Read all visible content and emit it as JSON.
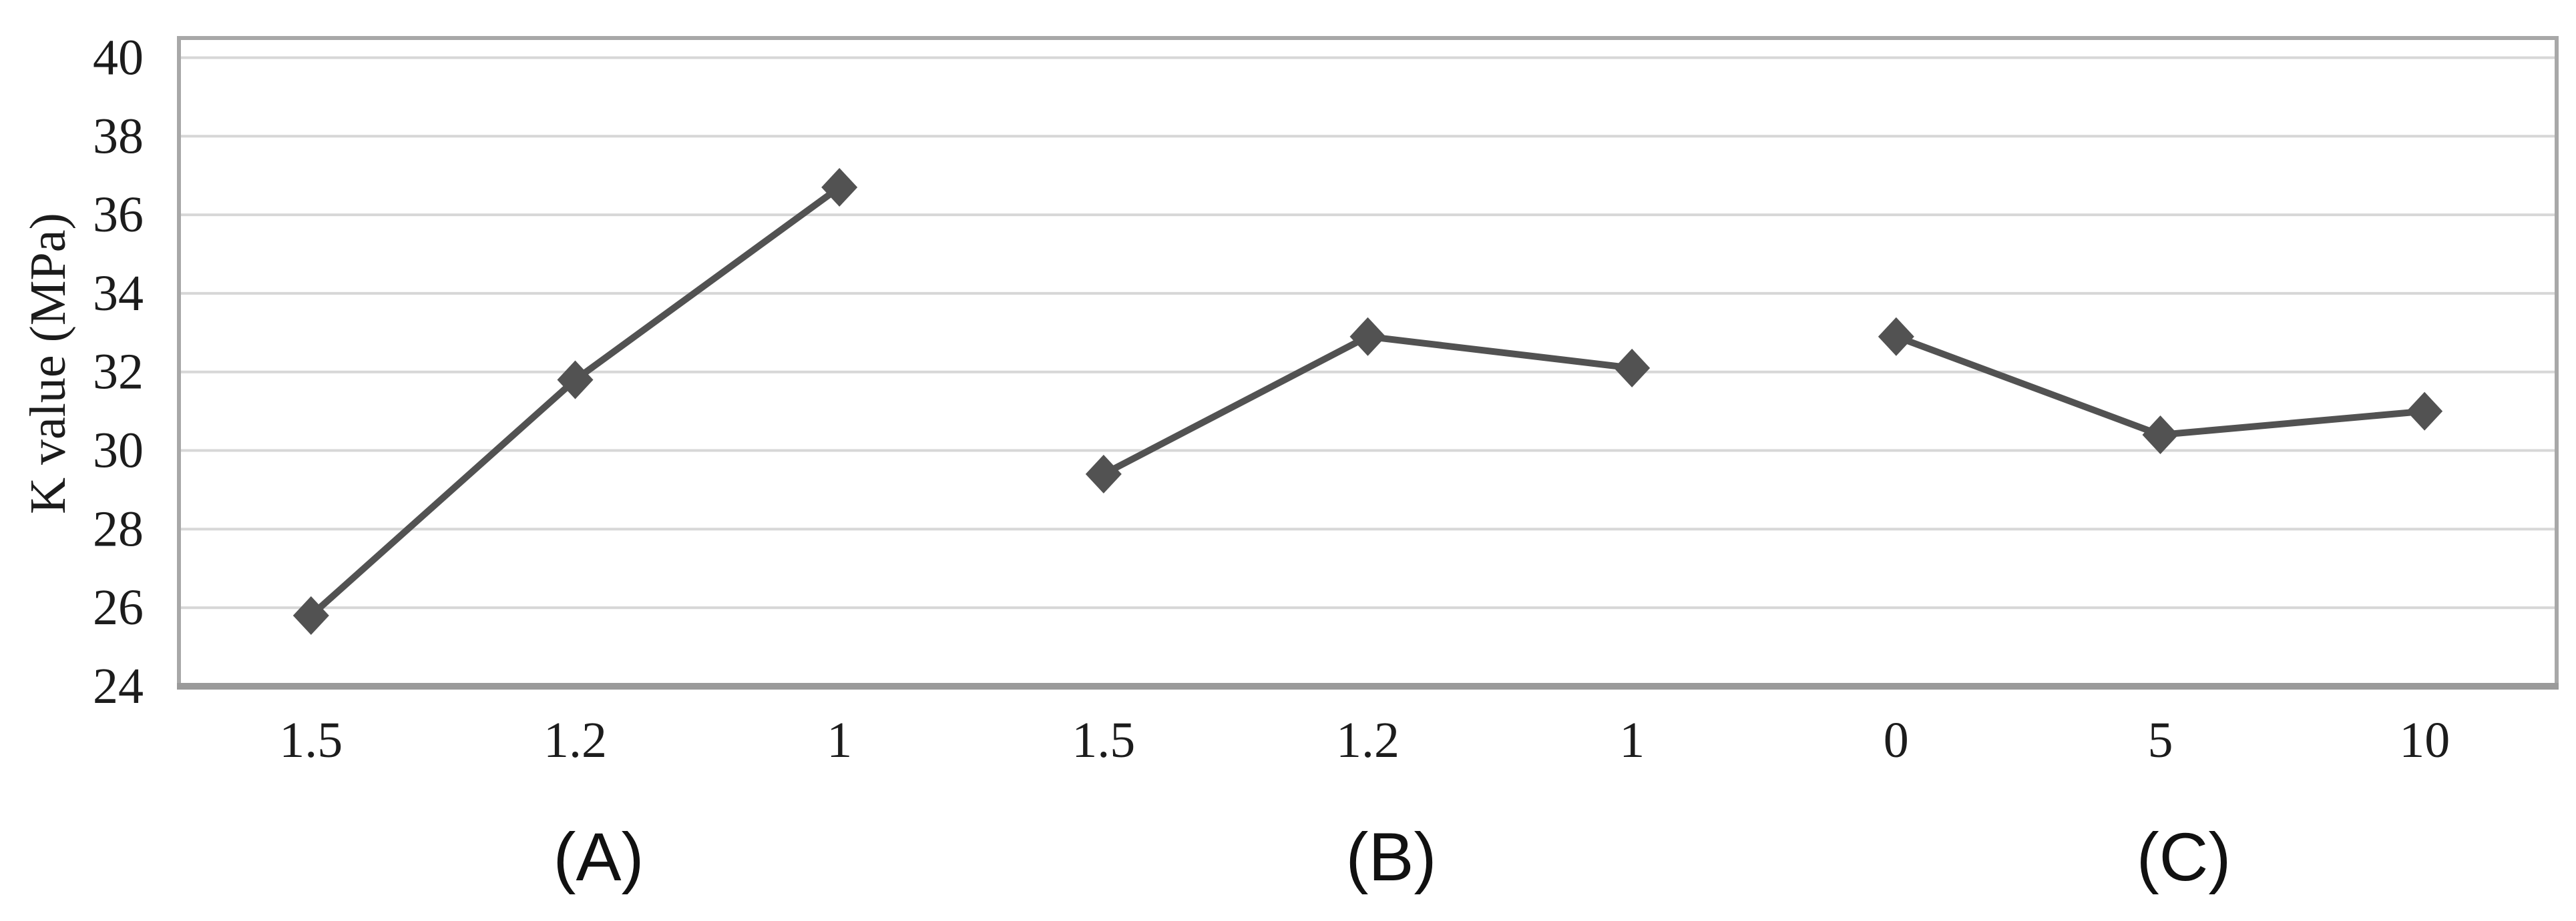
{
  "figure": {
    "background": "#ffffff"
  },
  "chart_data": {
    "type": "line",
    "title": "",
    "xlabel": "",
    "ylabel": "K value (MPa)",
    "ylim": [
      24,
      40.5
    ],
    "yticks": [
      24,
      26,
      28,
      30,
      32,
      34,
      36,
      38,
      40
    ],
    "grid": "horizontal-only",
    "legend_position": "none",
    "marker": "diamond",
    "categories": [
      "1.5",
      "1.2",
      "1",
      "1.5",
      "1.2",
      "1",
      "0",
      "5",
      "10"
    ],
    "series": [
      {
        "name": "A",
        "label": "(A)",
        "category_indices": [
          0,
          1,
          2
        ],
        "values": [
          25.8,
          31.8,
          36.7
        ]
      },
      {
        "name": "B",
        "label": "(B)",
        "category_indices": [
          3,
          4,
          5
        ],
        "values": [
          29.4,
          32.9,
          32.1
        ]
      },
      {
        "name": "C",
        "label": "(C)",
        "category_indices": [
          6,
          7,
          8
        ],
        "values": [
          32.9,
          30.4,
          31.0
        ]
      }
    ],
    "group_labels": [
      "(A)",
      "(B)",
      "(C)"
    ],
    "colors": {
      "line": "#525252",
      "marker": "#525252",
      "gridline": "#d7d7d7",
      "plot_border": "#a8a8a8",
      "axis_line": "#9a9a9a",
      "text": "#1c1c1c"
    }
  }
}
